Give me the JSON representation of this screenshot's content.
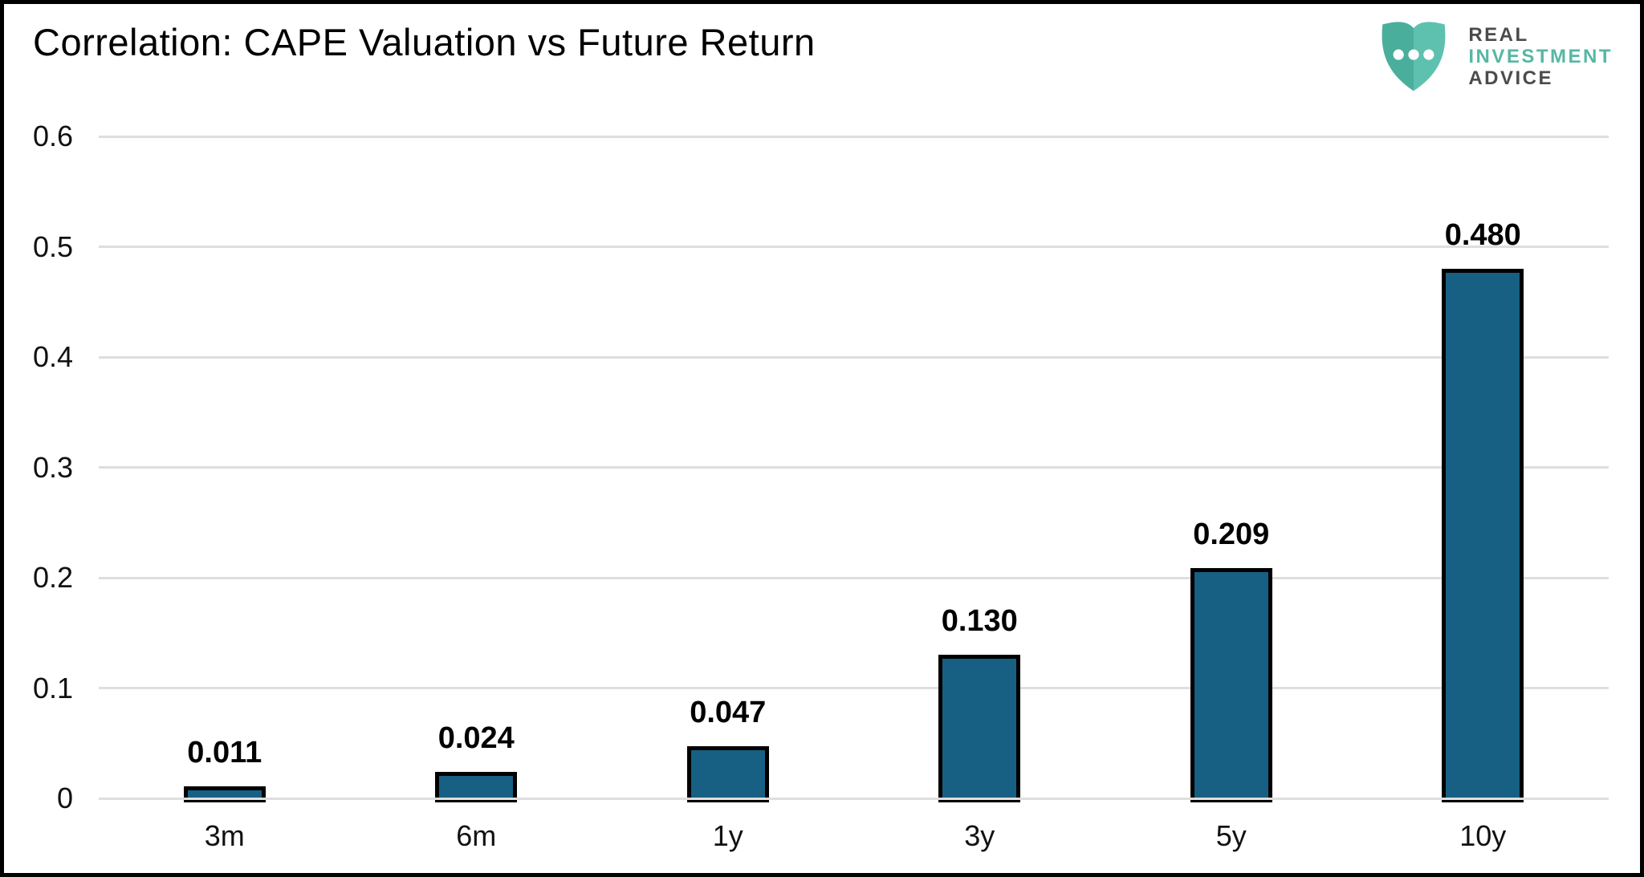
{
  "header": {
    "logo": {
      "line1": "REAL",
      "line2": "INVESTMENT",
      "line3": "ADVICE",
      "shield_color_left": "#4aae9c",
      "shield_color_right": "#5ec1af",
      "dot_color": "#ffffff",
      "text_color_dark": "#4a4b4d",
      "text_color_teal": "#56b7a4"
    }
  },
  "chart_data": {
    "type": "bar",
    "title": "Correlation: CAPE Valuation vs Future Return",
    "categories": [
      "3m",
      "6m",
      "1y",
      "3y",
      "5y",
      "10y"
    ],
    "values": [
      0.011,
      0.024,
      0.047,
      0.13,
      0.209,
      0.48
    ],
    "value_labels": [
      "0.011",
      "0.024",
      "0.047",
      "0.130",
      "0.209",
      "0.480"
    ],
    "xlabel": "",
    "ylabel": "",
    "ylim": [
      0,
      0.6
    ],
    "yticks": [
      0,
      0.1,
      0.2,
      0.3,
      0.4,
      0.5,
      0.6
    ],
    "ytick_labels": [
      "0",
      "0.1",
      "0.2",
      "0.3",
      "0.4",
      "0.5",
      "0.6"
    ],
    "grid": true,
    "legend": false,
    "bar_color": "#176083",
    "bar_border_color": "#000000",
    "gridline_color": "#dedede"
  }
}
